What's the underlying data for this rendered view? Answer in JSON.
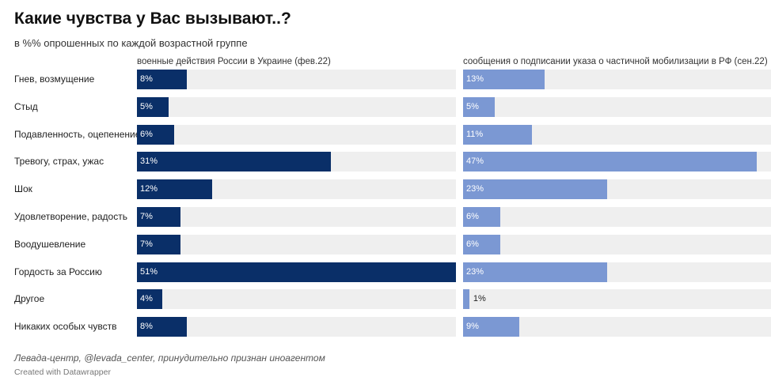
{
  "title": "Какие чувства у Вас вызывают..?",
  "subtitle": "в %% опрошенных по каждой возрастной группе",
  "source": "Левада-центр, @levada_center, принудительно признан иноагентом",
  "credit": "Created with Datawrapper",
  "colors": {
    "war": "#0a2f68",
    "mobilization": "#7b98d3",
    "track": "#efefef"
  },
  "chart_data": {
    "type": "bar",
    "orientation": "horizontal",
    "value_suffix": "%",
    "categories": [
      "Гнев, возмущение",
      "Стыд",
      "Подавленность, оцепенение",
      "Тревогу, страх, ужас",
      "Шок",
      "Удовлетворение, радость",
      "Воодушевление",
      "Гордость за Россию",
      "Другое",
      "Никаких особых чувств"
    ],
    "series": [
      {
        "name": "военные действия России в Украине (фев.22)",
        "values": [
          8,
          5,
          6,
          31,
          12,
          7,
          7,
          51,
          4,
          8
        ]
      },
      {
        "name": "сообщения о подписании указа о частичной мобилизации в РФ (сен.22)",
        "values": [
          13,
          5,
          11,
          47,
          23,
          6,
          6,
          23,
          1,
          9
        ]
      }
    ]
  }
}
